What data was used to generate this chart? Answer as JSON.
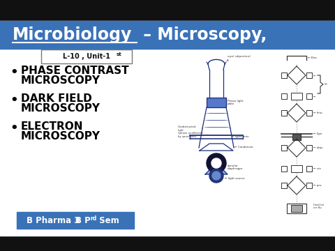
{
  "outer_bg": "#111111",
  "header_bg": "#3a72b8",
  "header_text_micro": "Microbiology",
  "header_text_rest": " – Microscopy,",
  "header_text_color": "#ffffff",
  "white_area_bg": "#ffffff",
  "bullet_items_line1": [
    "PHASE CONTRAST",
    "DARK FIELD",
    "ELECTRON"
  ],
  "bullet_items_line2": [
    "MICROSCOPY",
    "MICROSCOPY",
    "MICROSCOPY"
  ],
  "bullet_color": "#000000",
  "footer_bg": "#3a72b8",
  "footer_text_color": "#ffffff",
  "label_border": "#888888",
  "dark_blue": "#1a2e6e",
  "sketch_ink": "#1a2e7a",
  "sketch_ink2": "#333333"
}
